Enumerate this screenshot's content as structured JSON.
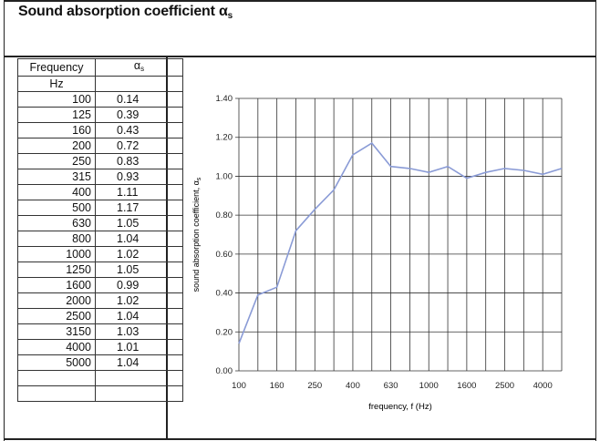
{
  "title": {
    "main": "Sound absorption coefficient α",
    "subscript": "s"
  },
  "table": {
    "header_frequency": "Frequency",
    "header_alpha": "α",
    "header_alpha_sub": "s",
    "unit": "Hz",
    "rows": [
      {
        "f": "100",
        "a": "0.14"
      },
      {
        "f": "125",
        "a": "0.39"
      },
      {
        "f": "160",
        "a": "0.43"
      },
      {
        "f": "200",
        "a": "0.72"
      },
      {
        "f": "250",
        "a": "0.83"
      },
      {
        "f": "315",
        "a": "0.93"
      },
      {
        "f": "400",
        "a": "1.11"
      },
      {
        "f": "500",
        "a": "1.17"
      },
      {
        "f": "630",
        "a": "1.05"
      },
      {
        "f": "800",
        "a": "1.04"
      },
      {
        "f": "1000",
        "a": "1.02"
      },
      {
        "f": "1250",
        "a": "1.05"
      },
      {
        "f": "1600",
        "a": "0.99"
      },
      {
        "f": "2000",
        "a": "1.02"
      },
      {
        "f": "2500",
        "a": "1.04"
      },
      {
        "f": "3150",
        "a": "1.03"
      },
      {
        "f": "4000",
        "a": "1.01"
      },
      {
        "f": "5000",
        "a": "1.04"
      }
    ]
  },
  "chart_data": {
    "type": "line",
    "x": [
      "100",
      "125",
      "160",
      "200",
      "250",
      "315",
      "400",
      "500",
      "630",
      "800",
      "1000",
      "1250",
      "1600",
      "2000",
      "2500",
      "3150",
      "4000",
      "5000"
    ],
    "values": [
      0.14,
      0.39,
      0.43,
      0.72,
      0.83,
      0.93,
      1.11,
      1.17,
      1.05,
      1.04,
      1.02,
      1.05,
      0.99,
      1.02,
      1.04,
      1.03,
      1.01,
      1.04
    ],
    "x_tick_labels": [
      "100",
      "160",
      "250",
      "400",
      "630",
      "1000",
      "1600",
      "2500",
      "4000"
    ],
    "y_tick_labels": [
      "0.00",
      "0.20",
      "0.40",
      "0.60",
      "0.80",
      "1.00",
      "1.20",
      "1.40"
    ],
    "ylim": [
      0,
      1.4
    ],
    "xlabel": "frequency, f (Hz)",
    "ylabel": "sound absorption coefficient, α",
    "ylabel_sub": "s",
    "line_color": "#8a9bd6",
    "grid": true
  }
}
